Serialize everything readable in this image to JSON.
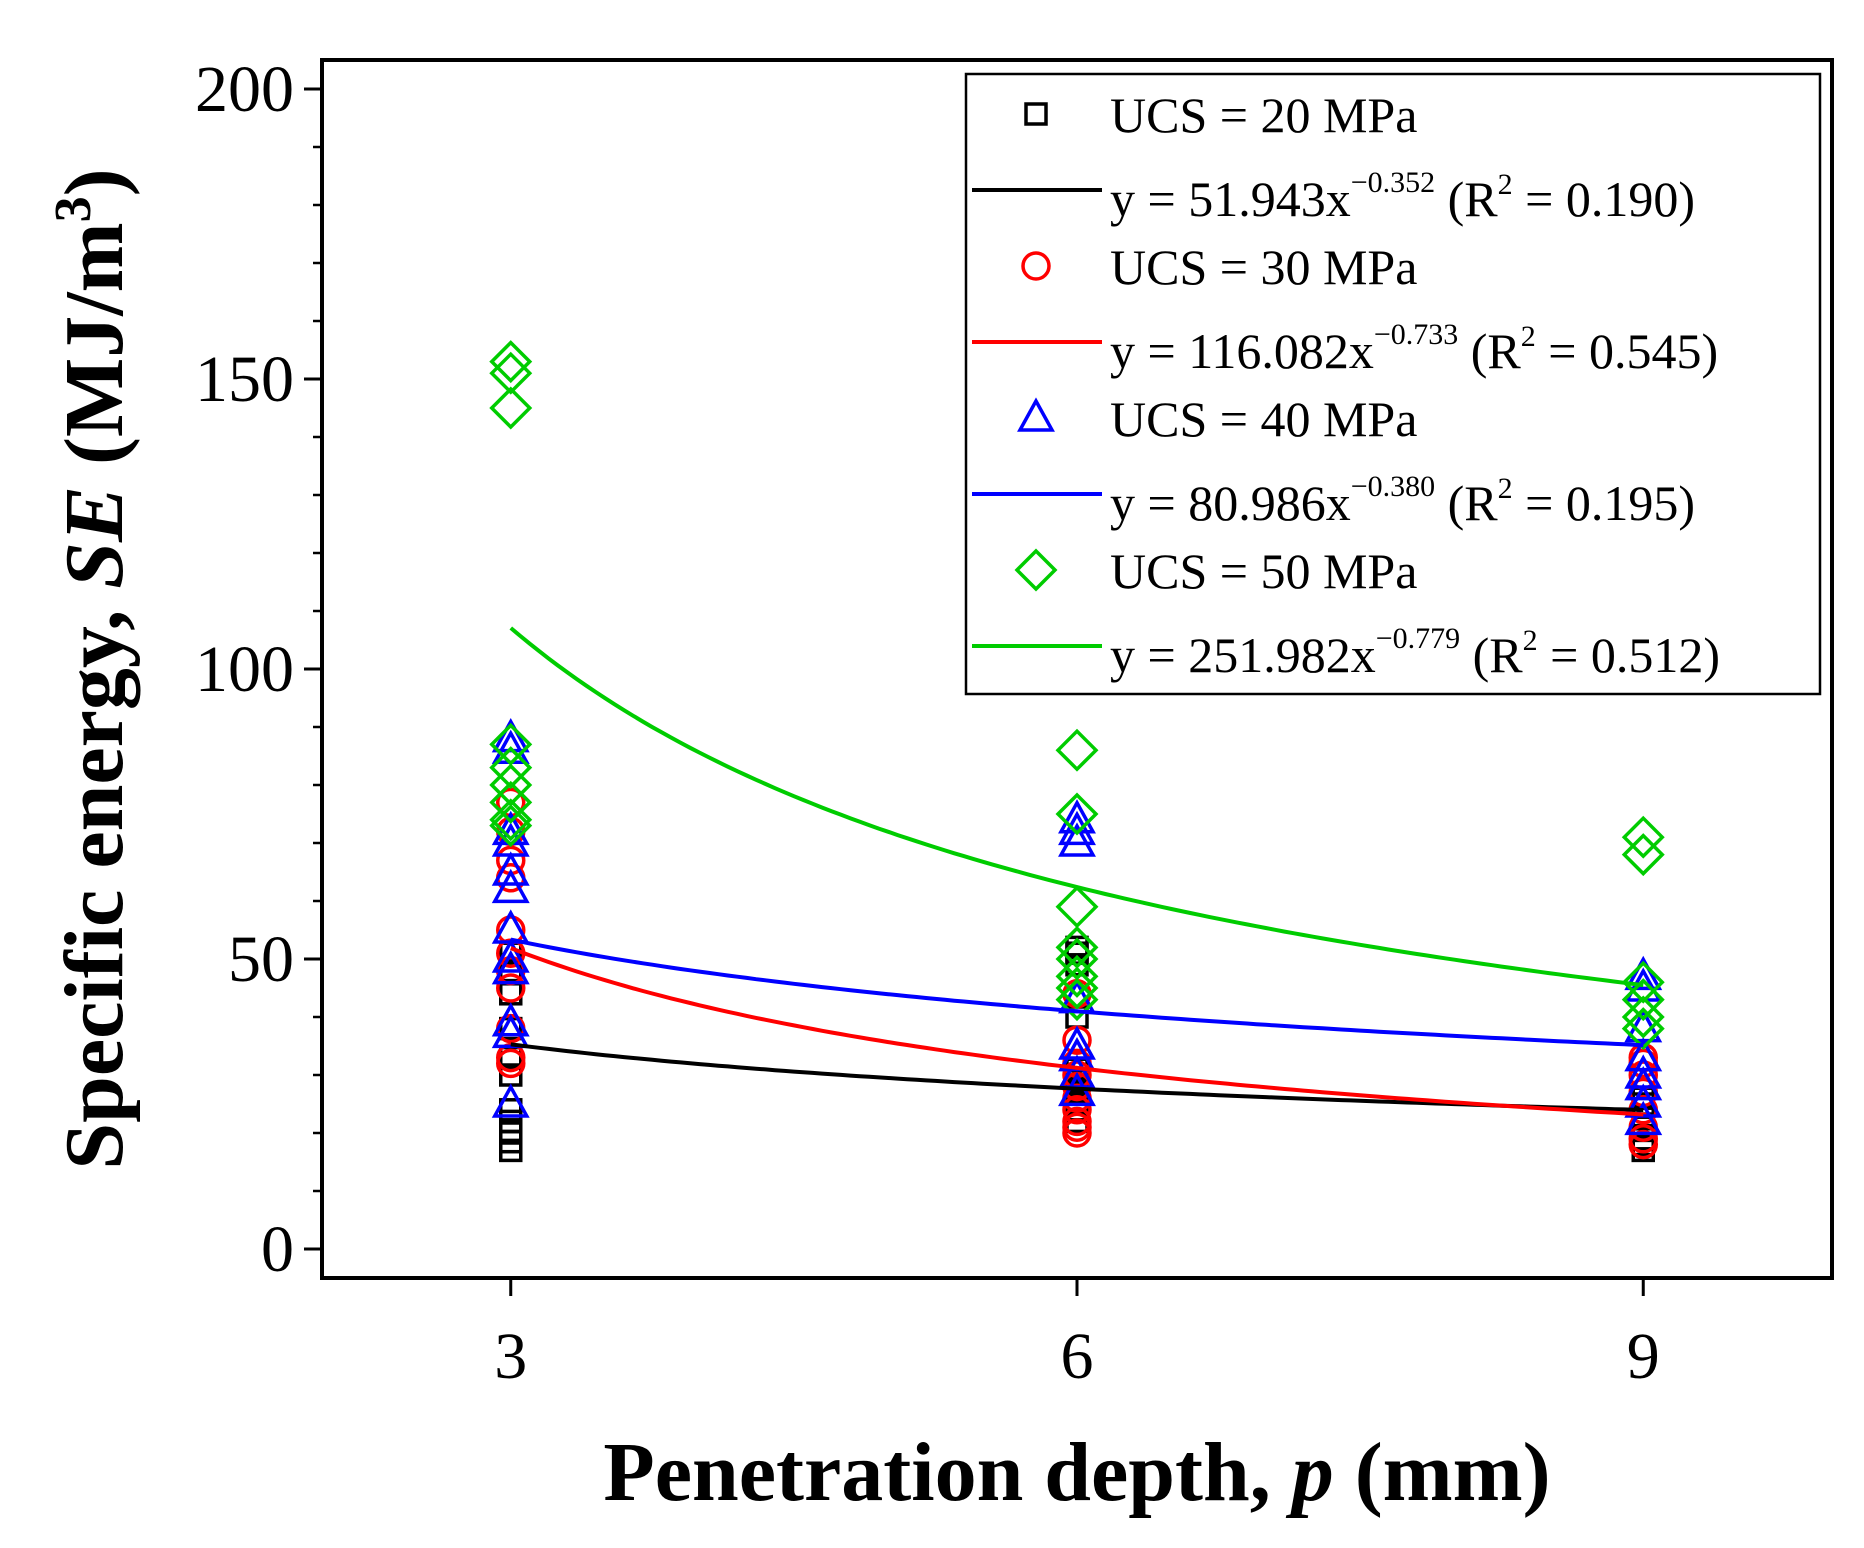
{
  "chart_data": {
    "type": "scatter",
    "xlabel": "Penetration depth, p (mm)",
    "xlabel_parts": {
      "prefix": "Penetration depth, ",
      "var": "p",
      "suffix": " (mm)"
    },
    "ylabel": "Specific energy, SE (MJ/m3)",
    "ylabel_parts": {
      "prefix": "Specific energy, ",
      "var": "SE",
      "suffix": " (MJ/m",
      "sup": "3",
      "close": ")"
    },
    "xlim": [
      2,
      10
    ],
    "ylim": [
      -5,
      205
    ],
    "x_ticks": [
      3,
      6,
      9
    ],
    "y_ticks": [
      0,
      50,
      100,
      150,
      200
    ],
    "grid": false,
    "legend_position": "top-right",
    "series": [
      {
        "name": "UCS = 20 MPa",
        "color": "#000000",
        "marker": "square",
        "points": [
          [
            3,
            17
          ],
          [
            3,
            18.5
          ],
          [
            3,
            20
          ],
          [
            3,
            22
          ],
          [
            3,
            24
          ],
          [
            3,
            30
          ],
          [
            3,
            33
          ],
          [
            3,
            38
          ],
          [
            3,
            44
          ],
          [
            3,
            48
          ],
          [
            3,
            51
          ],
          [
            6,
            22
          ],
          [
            6,
            24
          ],
          [
            6,
            25
          ],
          [
            6,
            27
          ],
          [
            6,
            28
          ],
          [
            6,
            29
          ],
          [
            6,
            31
          ],
          [
            6,
            40
          ],
          [
            6,
            49
          ],
          [
            6,
            51
          ],
          [
            6,
            52
          ],
          [
            9,
            17
          ],
          [
            9,
            18
          ],
          [
            9,
            19
          ],
          [
            9,
            21
          ],
          [
            9,
            23
          ],
          [
            9,
            25
          ],
          [
            9,
            26
          ]
        ],
        "fit": {
          "a": 51.943,
          "b": -0.352,
          "r2": 0.19,
          "label_prefix": "y = 51.943x",
          "exponent": "−0.352",
          "r2_prefix": " (R",
          "r2_sup": "2",
          "r2_suffix": " = 0.190)"
        }
      },
      {
        "name": "UCS = 30 MPa",
        "color": "#ff0000",
        "marker": "circle",
        "points": [
          [
            3,
            32
          ],
          [
            3,
            33
          ],
          [
            3,
            38
          ],
          [
            3,
            45
          ],
          [
            3,
            48
          ],
          [
            3,
            51
          ],
          [
            3,
            55
          ],
          [
            3,
            64
          ],
          [
            3,
            67
          ],
          [
            3,
            72
          ],
          [
            3,
            77
          ],
          [
            6,
            20
          ],
          [
            6,
            21
          ],
          [
            6,
            22
          ],
          [
            6,
            24
          ],
          [
            6,
            26
          ],
          [
            6,
            28
          ],
          [
            6,
            30
          ],
          [
            6,
            32
          ],
          [
            6,
            36
          ],
          [
            6,
            44
          ],
          [
            9,
            18
          ],
          [
            9,
            19
          ],
          [
            9,
            21
          ],
          [
            9,
            24
          ],
          [
            9,
            27
          ],
          [
            9,
            30
          ],
          [
            9,
            32
          ],
          [
            9,
            33
          ]
        ],
        "fit": {
          "a": 116.082,
          "b": -0.733,
          "r2": 0.545,
          "label_prefix": "y = 116.082x",
          "exponent": "−0.733",
          "r2_prefix": " (R",
          "r2_sup": "2",
          "r2_suffix": " = 0.545)"
        }
      },
      {
        "name": "UCS = 40 MPa",
        "color": "#0000ff",
        "marker": "triangle",
        "points": [
          [
            3,
            25
          ],
          [
            3,
            37
          ],
          [
            3,
            39
          ],
          [
            3,
            48
          ],
          [
            3,
            50
          ],
          [
            3,
            55
          ],
          [
            3,
            62
          ],
          [
            3,
            65
          ],
          [
            3,
            70
          ],
          [
            3,
            72
          ],
          [
            3,
            86
          ],
          [
            3,
            88
          ],
          [
            6,
            27
          ],
          [
            6,
            30
          ],
          [
            6,
            33
          ],
          [
            6,
            35
          ],
          [
            6,
            43
          ],
          [
            6,
            70
          ],
          [
            6,
            72
          ],
          [
            6,
            74
          ],
          [
            9,
            22
          ],
          [
            9,
            25
          ],
          [
            9,
            28
          ],
          [
            9,
            30
          ],
          [
            9,
            33
          ],
          [
            9,
            38
          ],
          [
            9,
            45
          ],
          [
            9,
            47
          ]
        ],
        "fit": {
          "a": 80.986,
          "b": -0.38,
          "r2": 0.195,
          "label_prefix": "y = 80.986x",
          "exponent": "−0.380",
          "r2_prefix": " (R",
          "r2_sup": "2",
          "r2_suffix": " = 0.195)"
        }
      },
      {
        "name": "UCS = 50 MPa",
        "color": "#00cc00",
        "marker": "diamond",
        "points": [
          [
            3,
            73
          ],
          [
            3,
            74
          ],
          [
            3,
            77
          ],
          [
            3,
            80
          ],
          [
            3,
            83
          ],
          [
            3,
            87
          ],
          [
            3,
            145
          ],
          [
            3,
            151
          ],
          [
            3,
            153
          ],
          [
            6,
            43
          ],
          [
            6,
            45
          ],
          [
            6,
            47
          ],
          [
            6,
            50
          ],
          [
            6,
            52
          ],
          [
            6,
            59
          ],
          [
            6,
            75
          ],
          [
            6,
            86
          ],
          [
            9,
            38
          ],
          [
            9,
            40
          ],
          [
            9,
            43
          ],
          [
            9,
            46
          ],
          [
            9,
            68
          ],
          [
            9,
            71
          ]
        ],
        "fit": {
          "a": 251.982,
          "b": -0.779,
          "r2": 0.512,
          "label_prefix": "y = 251.982x",
          "exponent": "−0.779",
          "r2_prefix": " (R",
          "r2_sup": "2",
          "r2_suffix": " = 0.512)"
        }
      }
    ]
  }
}
